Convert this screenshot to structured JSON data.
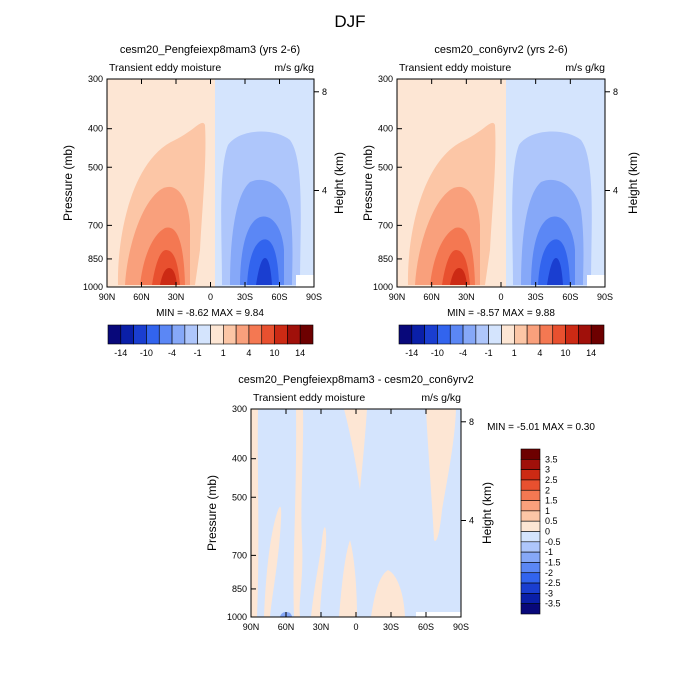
{
  "figure_title": "DJF",
  "chart_data": [
    {
      "type": "heatmap",
      "title": "cesm20_Pengfeiexp8mam3 (yrs 2-6)",
      "subtitle_left": "Transient eddy moisture",
      "subtitle_right": "m/s g/kg",
      "xlabel": "",
      "ylabel": "Pressure (mb)",
      "ylabel_right": "Height (km)",
      "x_ticks": [
        "90N",
        "60N",
        "30N",
        "0",
        "30S",
        "60S",
        "90S"
      ],
      "y_ticks": [
        "300",
        "400",
        "500",
        "700",
        "850",
        "1000"
      ],
      "y_right_ticks": [
        "8",
        "4"
      ],
      "stats": "MIN =  -8.62  MAX =   9.84",
      "min": -8.62,
      "max": 9.84,
      "colorbar_labels": [
        "-14",
        "-10",
        "-4",
        "-1",
        "1",
        "4",
        "10",
        "14"
      ]
    },
    {
      "type": "heatmap",
      "title": "cesm20_con6yrv2 (yrs 2-6)",
      "subtitle_left": "Transient eddy moisture",
      "subtitle_right": "m/s g/kg",
      "xlabel": "",
      "ylabel": "Pressure (mb)",
      "ylabel_right": "Height (km)",
      "x_ticks": [
        "90N",
        "60N",
        "30N",
        "0",
        "30S",
        "60S",
        "90S"
      ],
      "y_ticks": [
        "300",
        "400",
        "500",
        "700",
        "850",
        "1000"
      ],
      "y_right_ticks": [
        "8",
        "4"
      ],
      "stats": "MIN =  -8.57  MAX =   9.88",
      "min": -8.57,
      "max": 9.88,
      "colorbar_labels": [
        "-14",
        "-10",
        "-4",
        "-1",
        "1",
        "4",
        "10",
        "14"
      ]
    },
    {
      "type": "heatmap",
      "title": "cesm20_Pengfeiexp8mam3 - cesm20_con6yrv2",
      "subtitle_left": "Transient eddy moisture",
      "subtitle_right": "m/s g/kg",
      "xlabel": "",
      "ylabel": "Pressure (mb)",
      "ylabel_right": "Height (km)",
      "x_ticks": [
        "90N",
        "60N",
        "30N",
        "0",
        "30S",
        "60S",
        "90S"
      ],
      "y_ticks": [
        "300",
        "400",
        "500",
        "700",
        "850",
        "1000"
      ],
      "y_right_ticks": [
        "8",
        "4"
      ],
      "stats": "MIN = -5.01  MAX =   0.30",
      "min": -5.01,
      "max": 0.3,
      "colorbar_labels": [
        "3.5",
        "3",
        "2.5",
        "2",
        "1.5",
        "1",
        "0.5",
        "0",
        "-0.5",
        "-1",
        "-1.5",
        "-2",
        "-2.5",
        "-3",
        "-3.5"
      ]
    }
  ],
  "colors": {
    "top_colorbar": [
      "#08087a",
      "#0a1fa8",
      "#1a3ed0",
      "#3264ee",
      "#5b87f5",
      "#86a8f8",
      "#aec6fb",
      "#d4e4fd",
      "#fde6d4",
      "#fcc6a6",
      "#f9a07c",
      "#f47852",
      "#e8502f",
      "#cc2a14",
      "#a0100a",
      "#6d0000"
    ],
    "diff_colorbar": [
      "#6d0000",
      "#a0100a",
      "#cc2a14",
      "#e8502f",
      "#f47852",
      "#f9a07c",
      "#fcc6a6",
      "#fde6d4",
      "#d4e4fd",
      "#aec6fb",
      "#86a8f8",
      "#5b87f5",
      "#3264ee",
      "#1a3ed0",
      "#0a1fa8",
      "#08087a"
    ]
  }
}
